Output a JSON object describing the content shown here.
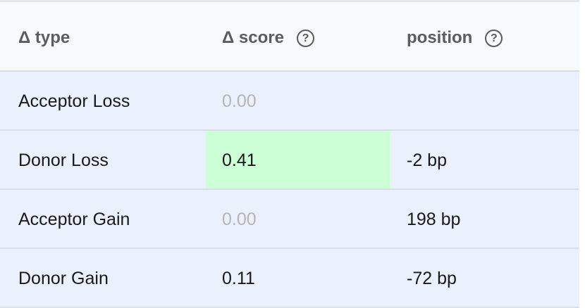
{
  "header": {
    "type": "Δ type",
    "score": "Δ score",
    "position": "position",
    "help_glyph": "?"
  },
  "colors": {
    "highlight": "#ccffd6",
    "row_bg": "#eaf1fc",
    "muted": "#b5b5b5"
  },
  "rows": [
    {
      "type": "Acceptor Loss",
      "score": "0.00",
      "position": "",
      "score_muted": true,
      "highlight": false
    },
    {
      "type": "Donor Loss",
      "score": "0.41",
      "position": "-2 bp",
      "score_muted": false,
      "highlight": true
    },
    {
      "type": "Acceptor Gain",
      "score": "0.00",
      "position": "198 bp",
      "score_muted": true,
      "highlight": false
    },
    {
      "type": "Donor Gain",
      "score": "0.11",
      "position": "-72 bp",
      "score_muted": false,
      "highlight": false
    }
  ]
}
